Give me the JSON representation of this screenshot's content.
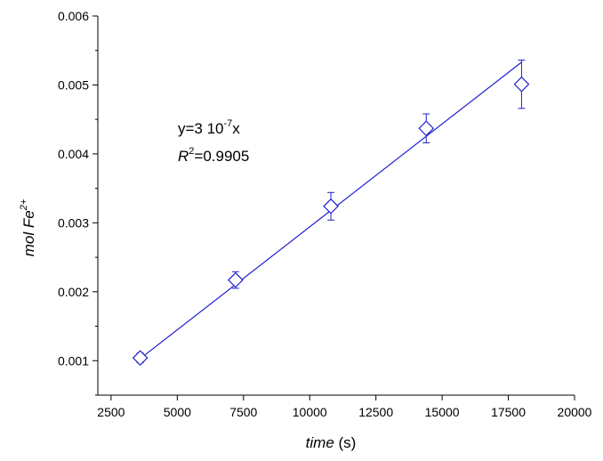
{
  "chart_data": {
    "type": "scatter",
    "title": "",
    "xlabel": {
      "italic": "time",
      "normal": " (s)"
    },
    "ylabel": {
      "italic_base": "mol Fe",
      "superscript": "2+"
    },
    "xlim": [
      2000,
      20000
    ],
    "ylim": [
      0.0005,
      0.006
    ],
    "x_ticks": [
      2500,
      5000,
      7500,
      10000,
      12500,
      15000,
      17500,
      20000
    ],
    "y_ticks": [
      0.001,
      0.002,
      0.003,
      0.004,
      0.005,
      0.006
    ],
    "y_tick_labels": [
      "0.001",
      "0.002",
      "0.003",
      "0.004",
      "0.005",
      "0.006"
    ],
    "grid": false,
    "series_color": "#1f1fd0",
    "marker": "diamond-open",
    "points": [
      {
        "x": 3600,
        "y": 0.00104,
        "err": 7e-05
      },
      {
        "x": 7200,
        "y": 0.00217,
        "err": 0.00012
      },
      {
        "x": 10800,
        "y": 0.00324,
        "err": 0.0002
      },
      {
        "x": 14400,
        "y": 0.00437,
        "err": 0.00021
      },
      {
        "x": 18000,
        "y": 0.00501,
        "err": 0.00035
      }
    ],
    "fit_line": {
      "x": [
        3600,
        18000
      ],
      "y": [
        0.00103,
        0.00533
      ]
    },
    "annotations": {
      "equation": {
        "base": "y=3 10",
        "exp": "-7",
        "tail": "x"
      },
      "r2": {
        "var": "R",
        "exp": "2",
        "value": "=0.9905"
      }
    }
  }
}
